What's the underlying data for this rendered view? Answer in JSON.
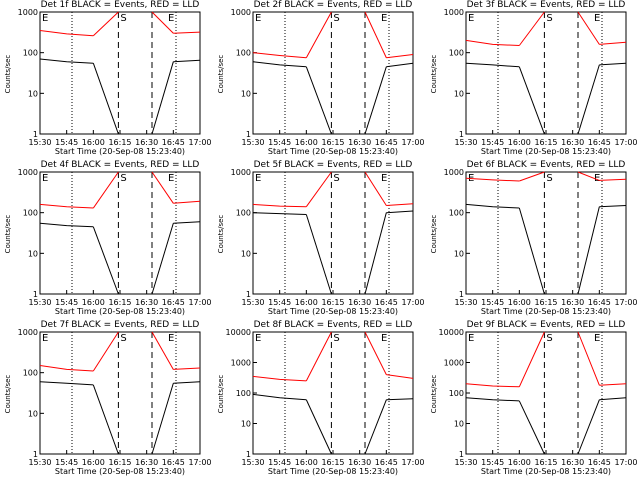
{
  "chart_data": [
    {
      "type": "line",
      "title": "Det 1f BLACK = Events, RED = LLD",
      "xlabel": "Start Time (20-Sep-08 15:23:40)",
      "ylabel": "Counts/sec",
      "ylim": [
        1,
        1000
      ],
      "yscale": "log",
      "yticks": [
        "1000",
        "100",
        "10",
        "1"
      ],
      "xticks": [
        "15:30",
        "15:45",
        "16:00",
        "16:15",
        "16:30",
        "16:45",
        "17:00"
      ],
      "region_labels": [
        "E",
        "S",
        "E"
      ],
      "series": [
        {
          "name": "Events",
          "color": "#000000",
          "values": [
            70,
            60,
            55,
            null,
            null,
            60,
            65
          ]
        },
        {
          "name": "LLD",
          "color": "#ff0000",
          "values": [
            350,
            290,
            260,
            null,
            null,
            300,
            320
          ]
        }
      ]
    },
    {
      "type": "line",
      "title": "Det 2f BLACK = Events, RED = LLD",
      "xlabel": "Start Time (20-Sep-08 15:23:40)",
      "ylabel": "Counts/sec",
      "ylim": [
        1,
        1000
      ],
      "yscale": "log",
      "yticks": [
        "1000",
        "100",
        "10",
        "1"
      ],
      "xticks": [
        "15:30",
        "15:45",
        "16:00",
        "16:15",
        "16:30",
        "16:45",
        "17:00"
      ],
      "region_labels": [
        "E",
        "S",
        "E"
      ],
      "series": [
        {
          "name": "Events",
          "color": "#000000",
          "values": [
            60,
            50,
            45,
            null,
            null,
            45,
            55
          ]
        },
        {
          "name": "LLD",
          "color": "#ff0000",
          "values": [
            100,
            85,
            75,
            null,
            null,
            75,
            90
          ]
        }
      ]
    },
    {
      "type": "line",
      "title": "Det 3f BLACK = Events, RED = LLD",
      "xlabel": "Start Time (20-Sep-08 15:23:40)",
      "ylabel": "Counts/sec",
      "ylim": [
        1,
        1000
      ],
      "yscale": "log",
      "yticks": [
        "1000",
        "100",
        "10",
        "1"
      ],
      "xticks": [
        "15:30",
        "15:45",
        "16:00",
        "16:15",
        "16:30",
        "16:45",
        "17:00"
      ],
      "region_labels": [
        "E",
        "S",
        "E"
      ],
      "series": [
        {
          "name": "Events",
          "color": "#000000",
          "values": [
            55,
            50,
            45,
            null,
            null,
            50,
            55
          ]
        },
        {
          "name": "LLD",
          "color": "#ff0000",
          "values": [
            200,
            160,
            150,
            null,
            null,
            160,
            180
          ]
        }
      ]
    },
    {
      "type": "line",
      "title": "Det 4f BLACK = Events, RED = LLD",
      "xlabel": "Start Time (20-Sep-08 15:23:40)",
      "ylabel": "Counts/sec",
      "ylim": [
        1,
        1000
      ],
      "yscale": "log",
      "yticks": [
        "1000",
        "100",
        "10",
        "1"
      ],
      "xticks": [
        "15:30",
        "15:45",
        "16:00",
        "16:15",
        "16:30",
        "16:45",
        "17:00"
      ],
      "region_labels": [
        "E",
        "S",
        "E"
      ],
      "series": [
        {
          "name": "Events",
          "color": "#000000",
          "values": [
            55,
            48,
            45,
            null,
            null,
            55,
            60
          ]
        },
        {
          "name": "LLD",
          "color": "#ff0000",
          "values": [
            160,
            140,
            130,
            null,
            null,
            170,
            190
          ]
        }
      ]
    },
    {
      "type": "line",
      "title": "Det 5f BLACK = Events, RED = LLD",
      "xlabel": "Start Time (20-Sep-08 15:23:40)",
      "ylabel": "Counts/sec",
      "ylim": [
        1,
        1000
      ],
      "yscale": "log",
      "yticks": [
        "1000",
        "100",
        "10",
        "1"
      ],
      "xticks": [
        "15:30",
        "15:45",
        "16:00",
        "16:15",
        "16:30",
        "16:45",
        "17:00"
      ],
      "region_labels": [
        "E",
        "S",
        "E"
      ],
      "series": [
        {
          "name": "Events",
          "color": "#000000",
          "values": [
            100,
            95,
            90,
            null,
            null,
            100,
            110
          ]
        },
        {
          "name": "LLD",
          "color": "#ff0000",
          "values": [
            160,
            145,
            140,
            null,
            null,
            150,
            165
          ]
        }
      ]
    },
    {
      "type": "line",
      "title": "Det 6f BLACK = Events, RED = LLD",
      "xlabel": "Start Time (20-Sep-08 15:23:40)",
      "ylabel": "Counts/sec",
      "ylim": [
        1,
        1000
      ],
      "yscale": "log",
      "yticks": [
        "1000",
        "100",
        "10",
        "1"
      ],
      "xticks": [
        "15:30",
        "15:45",
        "16:00",
        "16:15",
        "16:30",
        "16:45",
        "17:00"
      ],
      "region_labels": [
        "E",
        "S",
        "E"
      ],
      "series": [
        {
          "name": "Events",
          "color": "#000000",
          "values": [
            160,
            140,
            130,
            null,
            null,
            140,
            150
          ]
        },
        {
          "name": "LLD",
          "color": "#ff0000",
          "values": [
            700,
            640,
            600,
            null,
            null,
            620,
            660
          ]
        }
      ]
    },
    {
      "type": "line",
      "title": "Det 7f BLACK = Events, RED = LLD",
      "xlabel": "Start Time (20-Sep-08 15:23:40)",
      "ylabel": "Counts/sec",
      "ylim": [
        1,
        1000
      ],
      "yscale": "log",
      "yticks": [
        "1000",
        "100",
        "10",
        "1"
      ],
      "xticks": [
        "15:30",
        "15:45",
        "16:00",
        "16:15",
        "16:30",
        "16:45",
        "17:00"
      ],
      "region_labels": [
        "E",
        "S",
        "E"
      ],
      "series": [
        {
          "name": "Events",
          "color": "#000000",
          "values": [
            60,
            55,
            50,
            null,
            null,
            55,
            60
          ]
        },
        {
          "name": "LLD",
          "color": "#ff0000",
          "values": [
            150,
            120,
            110,
            null,
            null,
            120,
            130
          ]
        }
      ]
    },
    {
      "type": "line",
      "title": "Det 8f BLACK = Events, RED = LLD",
      "xlabel": "Start Time (20-Sep-08 15:23:40)",
      "ylabel": "Counts/sec",
      "ylim": [
        1,
        10000
      ],
      "yscale": "log",
      "yticks": [
        "10000",
        "1000",
        "100",
        "10",
        "1"
      ],
      "xticks": [
        "15:30",
        "15:45",
        "16:00",
        "16:15",
        "16:30",
        "16:45",
        "17:00"
      ],
      "region_labels": [
        "E",
        "S",
        "E"
      ],
      "series": [
        {
          "name": "Events",
          "color": "#000000",
          "values": [
            90,
            70,
            60,
            null,
            null,
            60,
            65
          ]
        },
        {
          "name": "LLD",
          "color": "#ff0000",
          "values": [
            350,
            280,
            250,
            null,
            null,
            400,
            300
          ]
        }
      ]
    },
    {
      "type": "line",
      "title": "Det 9f BLACK = Events, RED = LLD",
      "xlabel": "Start Time (20-Sep-08 15:23:40)",
      "ylabel": "Counts/sec",
      "ylim": [
        1,
        10000
      ],
      "yscale": "log",
      "yticks": [
        "10000",
        "1000",
        "100",
        "10",
        "1"
      ],
      "xticks": [
        "15:30",
        "15:45",
        "16:00",
        "16:15",
        "16:30",
        "16:45",
        "17:00"
      ],
      "region_labels": [
        "E",
        "S",
        "E"
      ],
      "series": [
        {
          "name": "Events",
          "color": "#000000",
          "values": [
            70,
            60,
            55,
            null,
            null,
            60,
            70
          ]
        },
        {
          "name": "LLD",
          "color": "#ff0000",
          "values": [
            200,
            170,
            160,
            null,
            null,
            180,
            200
          ]
        }
      ]
    }
  ]
}
